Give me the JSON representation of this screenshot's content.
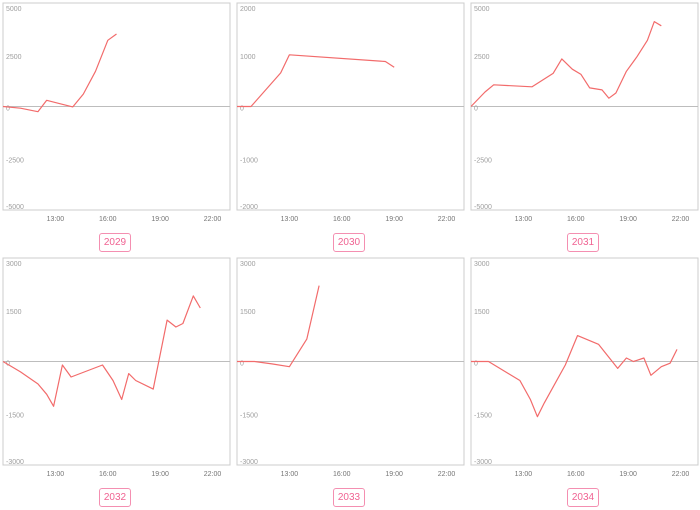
{
  "colors": {
    "line": "#f26b6b",
    "frame": "#cccccc",
    "zero_line": "#bdbdbd",
    "badge": "#f06292"
  },
  "chart_data": [
    {
      "type": "line",
      "label": "2029",
      "x_ticks": [
        "13:00",
        "16:00",
        "19:00",
        "22:00"
      ],
      "y_ticks": [
        5000,
        2500,
        0,
        -2500,
        -5000
      ],
      "xlim": [
        10,
        23
      ],
      "ylim": [
        -5000,
        5000
      ],
      "series": [
        {
          "x": [
            10,
            11,
            12,
            12.5,
            13.2,
            14,
            14.6,
            15.3,
            16,
            16.5
          ],
          "y": [
            0,
            -80,
            -250,
            300,
            150,
            -20,
            600,
            1700,
            3200,
            3500
          ]
        }
      ]
    },
    {
      "type": "line",
      "label": "2030",
      "x_ticks": [
        "13:00",
        "16:00",
        "19:00",
        "22:00"
      ],
      "y_ticks": [
        2000,
        1000,
        0,
        -1000,
        -2000
      ],
      "xlim": [
        10,
        23
      ],
      "ylim": [
        -2000,
        2000
      ],
      "series": [
        {
          "x": [
            10,
            10.8,
            12.5,
            13,
            18.5,
            19
          ],
          "y": [
            0,
            0,
            650,
            1000,
            870,
            760
          ]
        }
      ]
    },
    {
      "type": "line",
      "label": "2031",
      "x_ticks": [
        "13:00",
        "16:00",
        "19:00",
        "22:00"
      ],
      "y_ticks": [
        5000,
        2500,
        0,
        -2500,
        -5000
      ],
      "xlim": [
        10,
        23
      ],
      "ylim": [
        -5000,
        5000
      ],
      "series": [
        {
          "x": [
            10,
            10.8,
            11.3,
            13.5,
            14.7,
            15.2,
            15.8,
            16.3,
            16.8,
            17.5,
            17.9,
            18.3,
            18.9,
            19.5,
            20.1,
            20.5,
            20.9
          ],
          "y": [
            0,
            700,
            1050,
            950,
            1600,
            2300,
            1800,
            1550,
            900,
            800,
            400,
            650,
            1700,
            2400,
            3200,
            4100,
            3900
          ]
        }
      ]
    },
    {
      "type": "line",
      "label": "2032",
      "x_ticks": [
        "13:00",
        "16:00",
        "19:00",
        "22:00"
      ],
      "y_ticks": [
        3000,
        1500,
        0,
        -1500,
        -3000
      ],
      "xlim": [
        10,
        23
      ],
      "ylim": [
        -3000,
        3000
      ],
      "series": [
        {
          "x": [
            10,
            11,
            12,
            12.5,
            12.9,
            13.4,
            13.9,
            15.7,
            16.3,
            16.8,
            17.2,
            17.6,
            18.6,
            19.4,
            19.9,
            20.3,
            20.9,
            21.3
          ],
          "y": [
            0,
            -300,
            -650,
            -950,
            -1300,
            -100,
            -450,
            -100,
            -550,
            -1100,
            -350,
            -550,
            -800,
            1200,
            1000,
            1100,
            1900,
            1550
          ]
        }
      ]
    },
    {
      "type": "line",
      "label": "2033",
      "x_ticks": [
        "13:00",
        "16:00",
        "19:00",
        "22:00"
      ],
      "y_ticks": [
        3000,
        1500,
        0,
        -1500,
        -3000
      ],
      "xlim": [
        10,
        23
      ],
      "ylim": [
        -3000,
        3000
      ],
      "series": [
        {
          "x": [
            10,
            11,
            12,
            13,
            14,
            14.7
          ],
          "y": [
            0,
            0,
            -70,
            -150,
            650,
            2200
          ]
        }
      ]
    },
    {
      "type": "line",
      "label": "2034",
      "x_ticks": [
        "13:00",
        "16:00",
        "19:00",
        "22:00"
      ],
      "y_ticks": [
        3000,
        1500,
        0,
        -1500,
        -3000
      ],
      "xlim": [
        10,
        23
      ],
      "ylim": [
        -3000,
        3000
      ],
      "series": [
        {
          "x": [
            10,
            11,
            12.8,
            13.4,
            13.8,
            14.2,
            15.4,
            16.1,
            17.3,
            18.4,
            18.9,
            19.3,
            19.9,
            20.3,
            20.9,
            21.4,
            21.8
          ],
          "y": [
            0,
            0,
            -550,
            -1100,
            -1600,
            -1200,
            -100,
            750,
            500,
            -200,
            100,
            0,
            100,
            -400,
            -150,
            -50,
            350
          ]
        }
      ]
    }
  ]
}
